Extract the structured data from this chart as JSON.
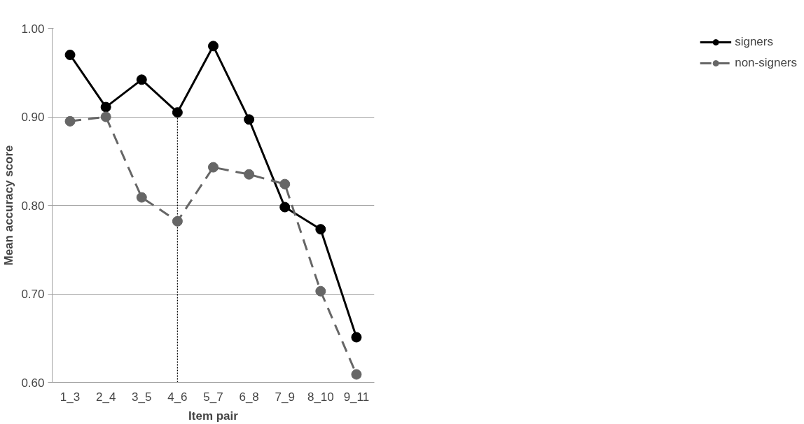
{
  "chart_data": {
    "type": "line",
    "xlabel": "Item pair",
    "ylabel": "Mean accuracy score",
    "categories": [
      "1_3",
      "2_4",
      "3_5",
      "4_6",
      "5_7",
      "6_8",
      "7_9",
      "8_10",
      "9_11"
    ],
    "series": [
      {
        "name": "signers",
        "color": "#000000",
        "line_style": "solid",
        "values": [
          0.97,
          0.911,
          0.942,
          0.905,
          0.98,
          0.897,
          0.798,
          0.773,
          0.651
        ]
      },
      {
        "name": "non-signers",
        "color": "#666666",
        "line_style": "dashed",
        "values": [
          0.895,
          0.9,
          0.809,
          0.782,
          0.843,
          0.835,
          0.824,
          0.703,
          0.609
        ]
      }
    ],
    "ylim": [
      0.6,
      1.0
    ],
    "yticks": [
      {
        "value": 0.6,
        "label": "0.60"
      },
      {
        "value": 0.7,
        "label": "0.70"
      },
      {
        "value": 0.8,
        "label": "0.80"
      },
      {
        "value": 0.9,
        "label": "0.90"
      },
      {
        "value": 1.0,
        "label": "1.00"
      }
    ],
    "grid": "y",
    "legend": "right",
    "marker": "circle",
    "ref_lines": [
      {
        "axis": "x",
        "value": "4_6",
        "line_style": "dotted",
        "color": "#000000"
      }
    ]
  }
}
